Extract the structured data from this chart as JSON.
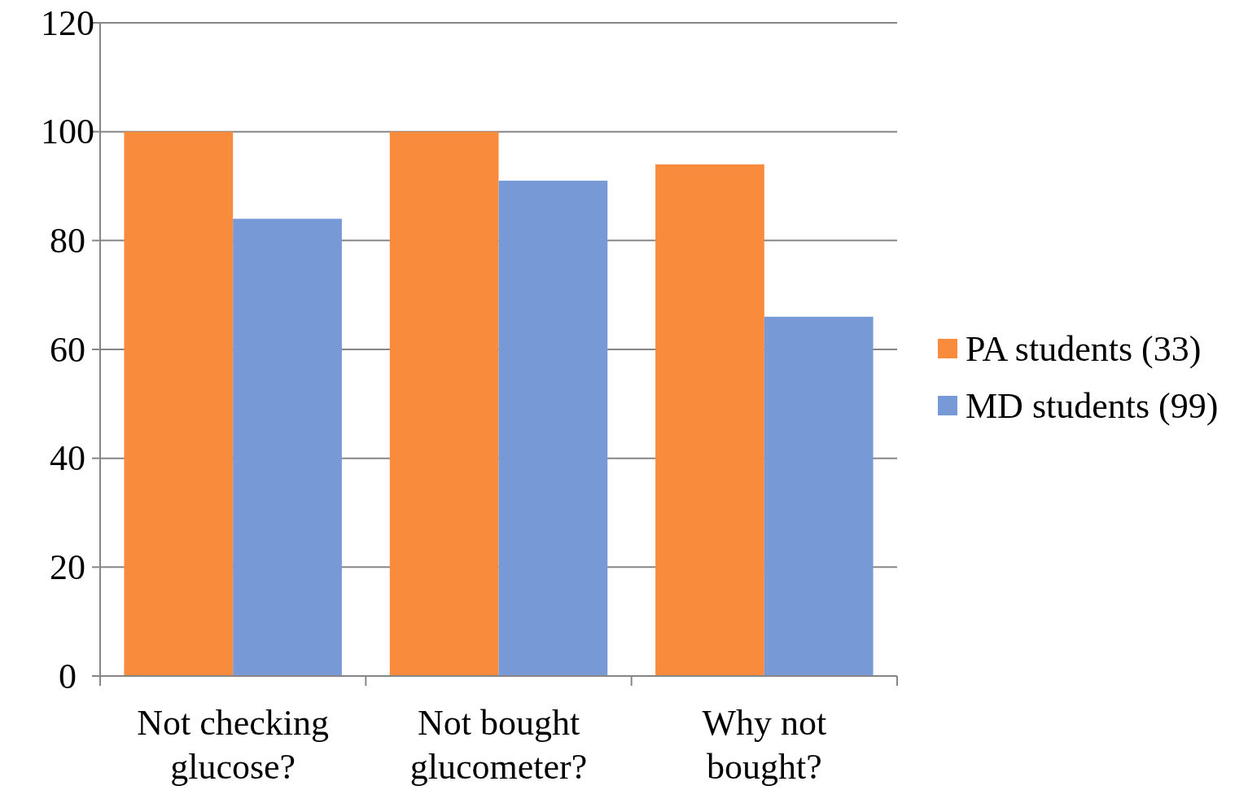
{
  "chart_data": {
    "type": "bar",
    "categories": [
      "Not checking glucose?",
      "Not bought glucometer?",
      "Why not bought?"
    ],
    "series": [
      {
        "name": "PA students (33)",
        "color": "#f98b3c",
        "values": [
          100,
          100,
          94
        ]
      },
      {
        "name": "MD students (99)",
        "color": "#7799d6",
        "values": [
          84,
          91,
          66
        ]
      }
    ],
    "ylim": [
      0,
      120
    ],
    "yticks": [
      0,
      20,
      40,
      60,
      80,
      100,
      120
    ],
    "grid": "y",
    "legend": "right"
  }
}
